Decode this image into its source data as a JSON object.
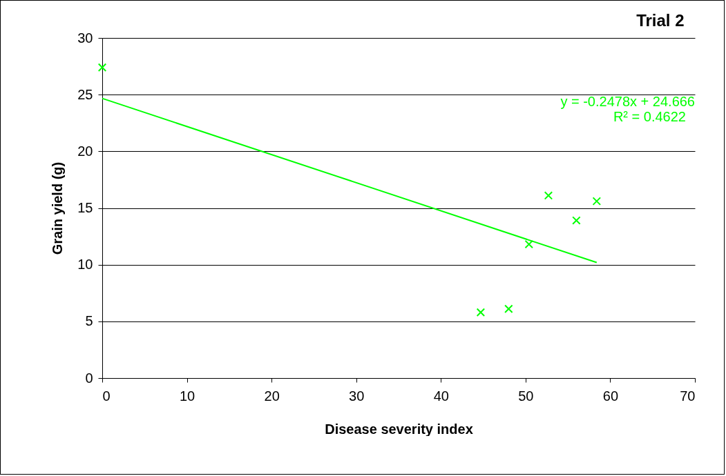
{
  "chart_data": {
    "type": "scatter",
    "title": "Trial 2",
    "xlabel": "Disease severity index",
    "ylabel": "Grain yield (g)",
    "x": [
      0,
      44.7,
      48.0,
      50.4,
      52.7,
      56.0,
      58.4
    ],
    "series": [
      {
        "color": "#00ff00",
        "values": [
          27.4,
          5.8,
          6.1,
          11.8,
          16.1,
          13.9,
          15.6
        ]
      },
      {
        "type": "line",
        "color": "#00ff00",
        "marker": "none",
        "x": [
          0,
          58.4
        ],
        "values": [
          24.67,
          10.19
        ]
      }
    ],
    "annotations": [
      "y = -0.2478x + 24.666",
      "R² = 0.4622"
    ],
    "xlim": [
      0,
      70
    ],
    "xticks": [
      0,
      10,
      20,
      30,
      40,
      50,
      60,
      70
    ],
    "ylim": [
      0,
      30
    ],
    "yticks": [
      0,
      5,
      10,
      15,
      20,
      25,
      30
    ],
    "grid": "y",
    "marker": "cross",
    "line_style": "solid"
  }
}
